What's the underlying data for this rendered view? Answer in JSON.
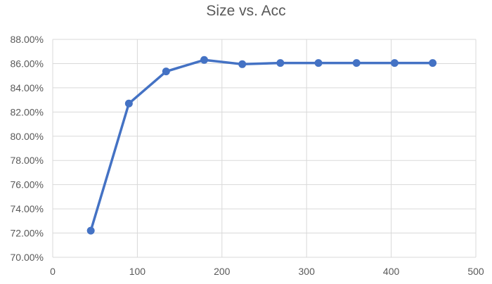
{
  "chart_data": {
    "type": "line",
    "title": "Size vs. Acc",
    "xlabel": "",
    "ylabel": "",
    "xlim": [
      0,
      500
    ],
    "ylim": [
      70,
      88
    ],
    "x_ticks": [
      0,
      100,
      200,
      300,
      400,
      500
    ],
    "y_ticks": [
      70,
      72,
      74,
      76,
      78,
      80,
      82,
      84,
      86,
      88
    ],
    "x_tick_labels": [
      "0",
      "100",
      "200",
      "300",
      "400",
      "500"
    ],
    "y_tick_labels": [
      "70.00%",
      "72.00%",
      "74.00%",
      "76.00%",
      "78.00%",
      "80.00%",
      "82.00%",
      "84.00%",
      "86.00%",
      "88.00%"
    ],
    "grid": true,
    "legend": "none",
    "series": [
      {
        "color": "#4472C4",
        "marker": "circle",
        "x": [
          45,
          90,
          134,
          179,
          224,
          269,
          314,
          359,
          404,
          449
        ],
        "y": [
          72.2,
          82.7,
          85.35,
          86.3,
          85.95,
          86.05,
          86.05,
          86.05,
          86.05,
          86.05
        ]
      }
    ]
  }
}
